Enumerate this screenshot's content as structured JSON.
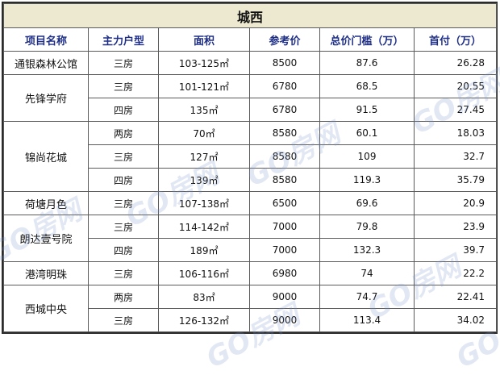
{
  "title": "城西",
  "headers": [
    "项目名称",
    "主力户型",
    "面积",
    "参考价",
    "总价门槛（万）",
    "首付（万）"
  ],
  "projects": [
    {
      "name": "通银森林公馆",
      "rows": [
        {
          "type": "三房",
          "area": "103-125㎡",
          "price": "8500",
          "total": "87.6",
          "down": "26.28"
        }
      ]
    },
    {
      "name": "先锋学府",
      "rows": [
        {
          "type": "三房",
          "area": "101-121㎡",
          "price": "6780",
          "total": "68.5",
          "down": "20.55"
        },
        {
          "type": "四房",
          "area": "135㎡",
          "price": "6780",
          "total": "91.5",
          "down": "27.45"
        }
      ]
    },
    {
      "name": "锦尚花城",
      "rows": [
        {
          "type": "两房",
          "area": "70㎡",
          "price": "8580",
          "total": "60.1",
          "down": "18.03"
        },
        {
          "type": "三房",
          "area": "127㎡",
          "price": "8580",
          "total": "109",
          "down": "32.7"
        },
        {
          "type": "四房",
          "area": "139㎡",
          "price": "8580",
          "total": "119.3",
          "down": "35.79"
        }
      ]
    },
    {
      "name": "荷塘月色",
      "rows": [
        {
          "type": "三房",
          "area": "107-138㎡",
          "price": "6500",
          "total": "69.6",
          "down": "20.9"
        }
      ]
    },
    {
      "name": "朗达壹号院",
      "rows": [
        {
          "type": "三房",
          "area": "114-142㎡",
          "price": "7000",
          "total": "79.8",
          "down": "23.9"
        },
        {
          "type": "四房",
          "area": "189㎡",
          "price": "7000",
          "total": "132.3",
          "down": "39.7"
        }
      ]
    },
    {
      "name": "港湾明珠",
      "rows": [
        {
          "type": "三房",
          "area": "106-116㎡",
          "price": "6980",
          "total": "74",
          "down": "22.2"
        }
      ]
    },
    {
      "name": "西城中央",
      "rows": [
        {
          "type": "两房",
          "area": "83㎡",
          "price": "9000",
          "total": "74.7",
          "down": "22.41"
        },
        {
          "type": "三房",
          "area": "126-132㎡",
          "price": "9000",
          "total": "113.4",
          "down": "34.02"
        }
      ]
    }
  ],
  "watermark": "GO房网"
}
